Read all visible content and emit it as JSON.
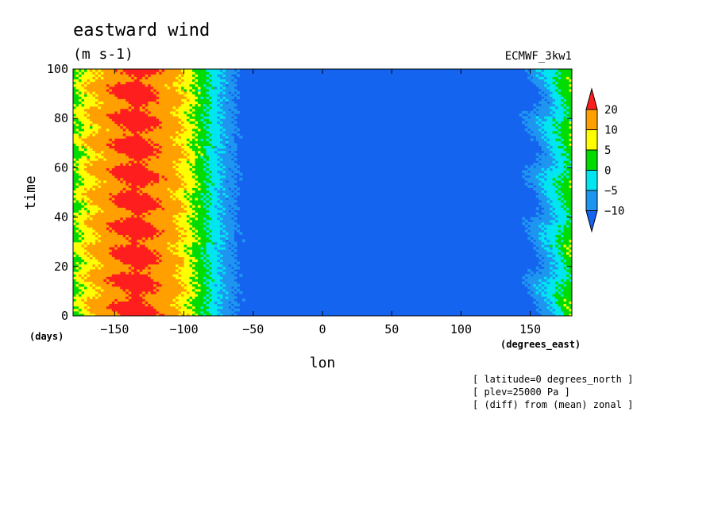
{
  "chart_data": {
    "type": "heatmap",
    "title": "eastward wind",
    "units": "(m s-1)",
    "model": "ECMWF_3kw1",
    "xlabel": "lon",
    "ylabel": "time",
    "x_unit": "(degrees_east)",
    "y_unit": "(days)",
    "xlim": [
      -180,
      180
    ],
    "ylim": [
      0,
      100
    ],
    "x_ticks": [
      -150,
      -100,
      -50,
      0,
      50,
      100,
      150
    ],
    "y_ticks": [
      0,
      20,
      40,
      60,
      80,
      100
    ],
    "colorbar": {
      "levels": [
        -10,
        -5,
        0,
        5,
        10,
        20
      ],
      "labels": [
        "20",
        "10",
        "5",
        "0",
        "-5",
        "-10"
      ],
      "colors": [
        "#1464f0",
        "#1e96f0",
        "#00e6f0",
        "#00dc00",
        "#ffff00",
        "#ffa000",
        "#ff1e1e"
      ],
      "extend": "both"
    },
    "notes": [
      "[ latitude=0 degrees_north ]",
      "[ plev=25000 Pa ]",
      "[ (diff) from (mean) zonal ]"
    ]
  }
}
